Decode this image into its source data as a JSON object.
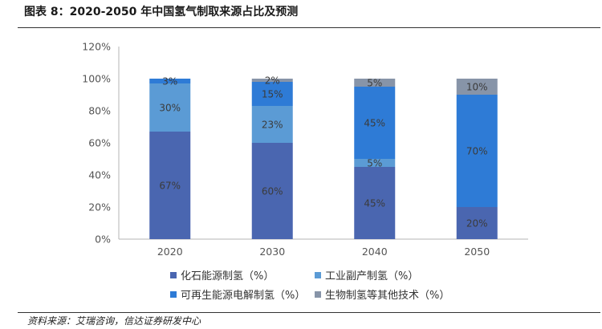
{
  "header": {
    "title": "图表 8：2020-2050 年中国氢气制取来源占比及预测"
  },
  "footer": {
    "source": "资料来源：艾瑞咨询，信达证券研发中心"
  },
  "chart_data": {
    "type": "bar",
    "stacked": true,
    "categories": [
      "2020",
      "2030",
      "2040",
      "2050"
    ],
    "series": [
      {
        "name": "化石能源制氢（%）",
        "values": [
          67,
          60,
          45,
          20
        ],
        "labels": [
          "67%",
          "60%",
          "45%",
          "20%"
        ],
        "color": "#4a66b0"
      },
      {
        "name": "工业副产制氢（%）",
        "values": [
          30,
          23,
          5,
          0
        ],
        "labels": [
          "30%",
          "23%",
          "5%",
          ""
        ],
        "color": "#5b9bd5"
      },
      {
        "name": "可再生能源电解制氢（%）",
        "values": [
          3,
          15,
          45,
          70
        ],
        "labels": [
          "3%",
          "15%",
          "45%",
          "70%"
        ],
        "color": "#2e7bd6"
      },
      {
        "name": "生物制氢等其他技术（%）",
        "values": [
          0,
          2,
          5,
          10
        ],
        "labels": [
          "",
          "2%",
          "5%",
          "10%"
        ],
        "color": "#8794a8"
      }
    ],
    "yticks": [
      "0%",
      "20%",
      "40%",
      "60%",
      "80%",
      "100%",
      "120%"
    ],
    "ylim": [
      0,
      120
    ],
    "grid": false,
    "legend_position": "bottom"
  }
}
